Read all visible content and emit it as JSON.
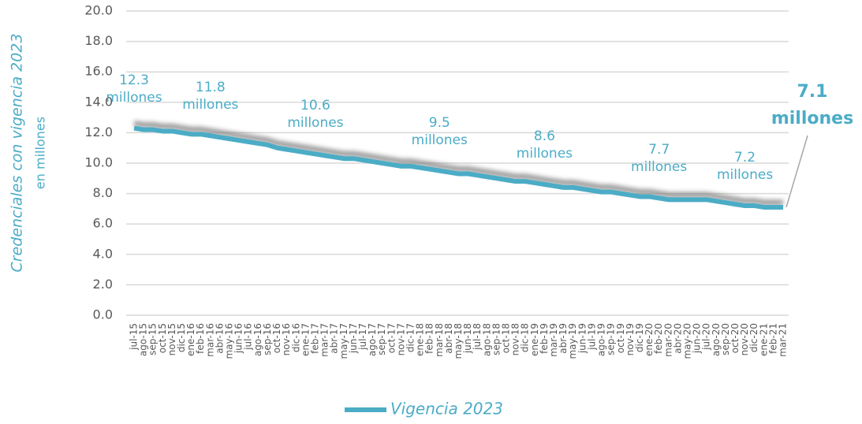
{
  "chart_data": {
    "type": "line",
    "y_label": "Credenciales con vigencia 2023",
    "y_sublabel": "en millones",
    "categories": [
      "jul-15",
      "ago-15",
      "sep-15",
      "oct-15",
      "nov-15",
      "dic-15",
      "ene-16",
      "feb-16",
      "mar-16",
      "abr-16",
      "may-16",
      "jun-16",
      "jul-16",
      "ago-16",
      "sep-16",
      "oct-16",
      "nov-16",
      "dic-16",
      "ene-17",
      "feb-17",
      "mar-17",
      "abr-17",
      "may-17",
      "jun-17",
      "jul-17",
      "ago-17",
      "sep-17",
      "oct-17",
      "nov-17",
      "dic-17",
      "ene-18",
      "feb-18",
      "mar-18",
      "abr-18",
      "may-18",
      "jun-18",
      "jul-18",
      "ago-18",
      "sep-18",
      "oct-18",
      "nov-18",
      "dic-18",
      "ene-19",
      "feb-19",
      "mar-19",
      "abr-19",
      "may-19",
      "jun-19",
      "jul-19",
      "ago-19",
      "sep-19",
      "oct-19",
      "nov-19",
      "dic-19",
      "ene-20",
      "feb-20",
      "mar-20",
      "abr-20",
      "may-20",
      "jun-20",
      "jul-20",
      "ago-20",
      "sep-20",
      "oct-20",
      "nov-20",
      "dic-20",
      "ene-21",
      "feb-21",
      "mar-21"
    ],
    "series": [
      {
        "name": "Vigencia 2023",
        "color": "#4bacc6",
        "values": [
          12.3,
          12.2,
          12.2,
          12.1,
          12.1,
          12.0,
          11.9,
          11.9,
          11.8,
          11.7,
          11.6,
          11.5,
          11.4,
          11.3,
          11.2,
          11.0,
          10.9,
          10.8,
          10.7,
          10.6,
          10.5,
          10.4,
          10.3,
          10.3,
          10.2,
          10.1,
          10.0,
          9.9,
          9.8,
          9.8,
          9.7,
          9.6,
          9.5,
          9.4,
          9.3,
          9.3,
          9.2,
          9.1,
          9.0,
          8.9,
          8.8,
          8.8,
          8.7,
          8.6,
          8.5,
          8.4,
          8.4,
          8.3,
          8.2,
          8.1,
          8.1,
          8.0,
          7.9,
          7.8,
          7.8,
          7.7,
          7.6,
          7.6,
          7.6,
          7.6,
          7.6,
          7.5,
          7.4,
          7.3,
          7.2,
          7.2,
          7.1,
          7.1,
          7.1
        ],
        "value_labels": [
          "12.3 millones",
          null,
          null,
          null,
          null,
          null,
          null,
          null,
          "11.8 millones",
          null,
          null,
          null,
          null,
          null,
          null,
          null,
          null,
          null,
          null,
          "10.6 millones",
          null,
          null,
          null,
          null,
          null,
          null,
          null,
          null,
          null,
          null,
          null,
          null,
          "9.5 millones",
          null,
          null,
          null,
          null,
          null,
          null,
          null,
          null,
          null,
          null,
          "8.6 millones",
          null,
          null,
          null,
          null,
          null,
          null,
          null,
          null,
          null,
          null,
          null,
          "7.7 millones",
          null,
          null,
          null,
          null,
          null,
          null,
          null,
          null,
          "7.2 millones",
          null,
          null,
          null,
          "7.1 millones"
        ]
      }
    ],
    "ylim": [
      0,
      20
    ],
    "yticks": [
      {
        "value": 0,
        "label": "0.0"
      },
      {
        "value": 2,
        "label": "2.0"
      },
      {
        "value": 4,
        "label": "4.0"
      },
      {
        "value": 6,
        "label": "6.0"
      },
      {
        "value": 8,
        "label": "8.0"
      },
      {
        "value": 10,
        "label": "10.0"
      },
      {
        "value": 12,
        "label": "12.0"
      },
      {
        "value": 14,
        "label": "14.0"
      },
      {
        "value": 16,
        "label": "16.0"
      },
      {
        "value": 18,
        "label": "18.0"
      },
      {
        "value": 20,
        "label": "20.0"
      }
    ],
    "grid": true,
    "legend": "bottom"
  }
}
